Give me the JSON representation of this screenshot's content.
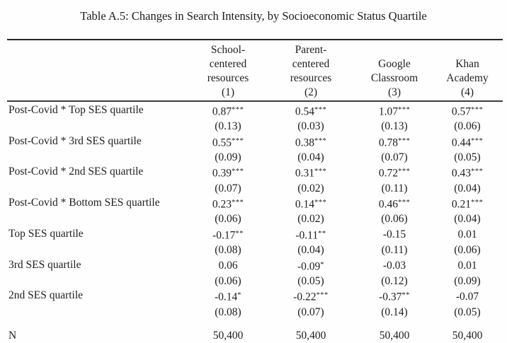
{
  "title": "Table A.5: Changes in Search Intensity, by Socioeconomic Status Quartile",
  "table": {
    "columns": [
      {
        "lines": [
          "School-",
          "centered",
          "resources"
        ],
        "number": "(1)"
      },
      {
        "lines": [
          "Parent-",
          "centered",
          "resources"
        ],
        "number": "(2)"
      },
      {
        "lines": [
          "Google",
          "Classroom"
        ],
        "number": "(3)"
      },
      {
        "lines": [
          "Khan",
          "Academy"
        ],
        "number": "(4)"
      }
    ],
    "rows": [
      {
        "label": "Post-Covid * Top SES quartile",
        "cells": [
          {
            "coef": "0.87",
            "stars": "***",
            "se": "(0.13)"
          },
          {
            "coef": "0.54",
            "stars": "***",
            "se": "(0.03)"
          },
          {
            "coef": "1.07",
            "stars": "***",
            "se": "(0.13)"
          },
          {
            "coef": "0.57",
            "stars": "***",
            "se": "(0.06)"
          }
        ]
      },
      {
        "label": "Post-Covid * 3rd SES quartile",
        "cells": [
          {
            "coef": "0.55",
            "stars": "***",
            "se": "(0.09)"
          },
          {
            "coef": "0.38",
            "stars": "***",
            "se": "(0.04)"
          },
          {
            "coef": "0.78",
            "stars": "***",
            "se": "(0.07)"
          },
          {
            "coef": "0.44",
            "stars": "***",
            "se": "(0.05)"
          }
        ]
      },
      {
        "label": "Post-Covid * 2nd SES quartile",
        "cells": [
          {
            "coef": "0.39",
            "stars": "***",
            "se": "(0.07)"
          },
          {
            "coef": "0.31",
            "stars": "***",
            "se": "(0.02)"
          },
          {
            "coef": "0.72",
            "stars": "***",
            "se": "(0.11)"
          },
          {
            "coef": "0.43",
            "stars": "***",
            "se": "(0.04)"
          }
        ]
      },
      {
        "label": "Post-Covid * Bottom SES quartile",
        "cells": [
          {
            "coef": "0.23",
            "stars": "***",
            "se": "(0.06)"
          },
          {
            "coef": "0.14",
            "stars": "***",
            "se": "(0.02)"
          },
          {
            "coef": "0.46",
            "stars": "***",
            "se": "(0.06)"
          },
          {
            "coef": "0.21",
            "stars": "***",
            "se": "(0.04)"
          }
        ]
      },
      {
        "label": "Top SES quartile",
        "cells": [
          {
            "coef": "-0.17",
            "stars": "**",
            "se": "(0.08)"
          },
          {
            "coef": "-0.11",
            "stars": "**",
            "se": "(0.04)"
          },
          {
            "coef": "-0.15",
            "stars": "",
            "se": "(0.11)"
          },
          {
            "coef": "0.01",
            "stars": "",
            "se": "(0.06)"
          }
        ]
      },
      {
        "label": "3rd SES quartile",
        "cells": [
          {
            "coef": "0.06",
            "stars": "",
            "se": "(0.06)"
          },
          {
            "coef": "-0.09",
            "stars": "*",
            "se": "(0.05)"
          },
          {
            "coef": "-0.03",
            "stars": "",
            "se": "(0.12)"
          },
          {
            "coef": "0.01",
            "stars": "",
            "se": "(0.09)"
          }
        ]
      },
      {
        "label": "2nd SES quartile",
        "cells": [
          {
            "coef": "-0.14",
            "stars": "*",
            "se": "(0.08)"
          },
          {
            "coef": "-0.22",
            "stars": "***",
            "se": "(0.07)"
          },
          {
            "coef": "-0.37",
            "stars": "**",
            "se": "(0.14)"
          },
          {
            "coef": "-0.07",
            "stars": "",
            "se": "(0.05)"
          }
        ]
      }
    ],
    "n_row": {
      "label": "N",
      "values": [
        "50,400",
        "50,400",
        "50,400",
        "50,400"
      ]
    }
  }
}
